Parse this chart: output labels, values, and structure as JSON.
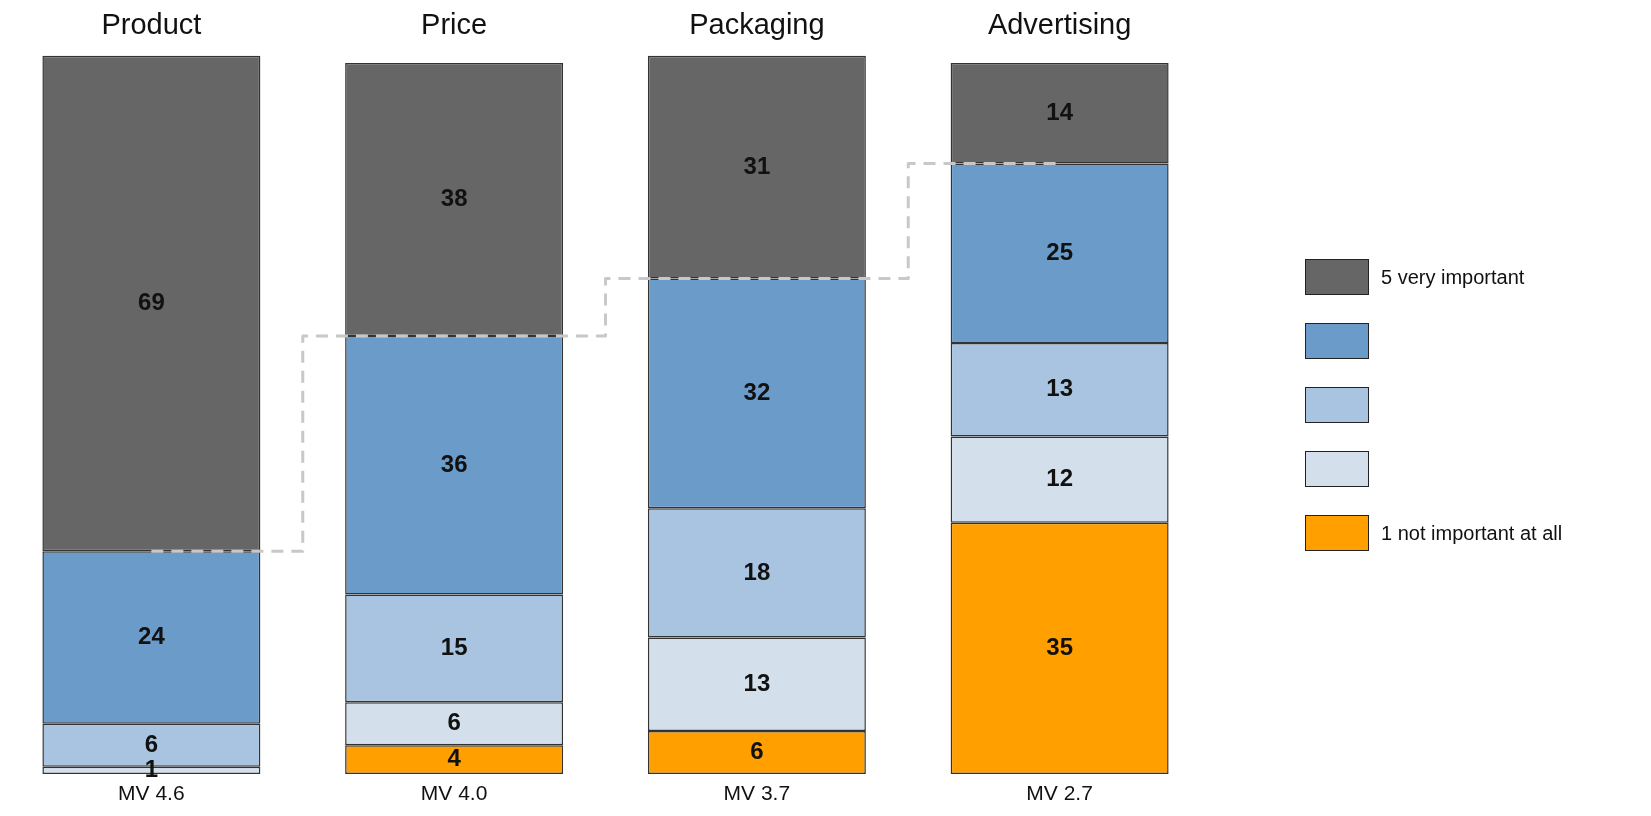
{
  "chart_data": {
    "type": "bar",
    "stacked": true,
    "categories": [
      "Product",
      "Price",
      "Packaging",
      "Advertising"
    ],
    "series": [
      {
        "name": "1 not important at all",
        "color": "#ff9f00",
        "values": [
          null,
          4,
          6,
          35
        ]
      },
      {
        "name": null,
        "color": "#d3e0ec",
        "values": [
          1,
          6,
          13,
          12
        ]
      },
      {
        "name": null,
        "color": "#a9c4e0",
        "values": [
          6,
          15,
          18,
          13
        ]
      },
      {
        "name": null,
        "color": "#6a9bc9",
        "values": [
          24,
          36,
          32,
          25
        ]
      },
      {
        "name": "5 very important",
        "color": "#666666",
        "values": [
          69,
          38,
          31,
          14
        ]
      },
      {
        "type": "step",
        "color": "#c8c8c8",
        "line_style": "dashed",
        "marker": "none",
        "values": [
          31,
          61,
          69,
          85
        ],
        "value_labels": [
          null,
          null,
          null,
          null
        ]
      }
    ],
    "ylim": [
      0,
      100
    ],
    "data_labels": true,
    "tick_labels": "x",
    "grid": false,
    "legend": "right",
    "annotations": [
      "MV 4.6",
      "MV 4.0",
      "MV 3.7",
      "MV 2.7"
    ]
  }
}
